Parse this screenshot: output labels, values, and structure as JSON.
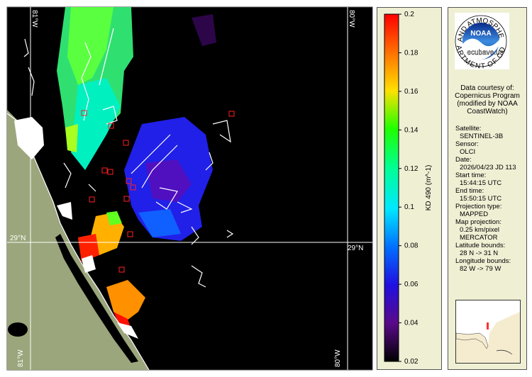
{
  "map": {
    "lat_left": "29°N",
    "lat_right": "29°N",
    "lon_top_left": "81°W",
    "lon_top_right": "80°W",
    "lon_bottom_left": "81°W",
    "lon_bottom_right": "80°W"
  },
  "colorbar": {
    "label": "KD 490 (m^-1)",
    "lim": [
      0.02,
      0.2
    ],
    "ticks": [
      0.2,
      0.18,
      0.16,
      0.14,
      0.12,
      0.1,
      0.08,
      0.06,
      0.04,
      0.02
    ]
  },
  "logo": {
    "name": "NOAA",
    "ring_top": "NATIONAL OCEANIC AND ATMOSPHERIC ADMINISTRATION",
    "ring_bottom": "U.S. DEPARTMENT OF COMMERCE",
    "watermark": "ecubave.us"
  },
  "credit": [
    "Data courtesy of:",
    "Copernicus Program",
    "(modified by NOAA",
    "CoastWatch)"
  ],
  "info": [
    {
      "label": "Satellite:",
      "values": [
        "SENTINEL-3B"
      ]
    },
    {
      "label": "Sensor:",
      "values": [
        "OLCI"
      ]
    },
    {
      "label": "Date:",
      "values": [
        "2026/04/23 JD 113"
      ]
    },
    {
      "label": "Start time:",
      "values": [
        "15:44:15 UTC"
      ]
    },
    {
      "label": "End time:",
      "values": [
        "15:50:15 UTC"
      ]
    },
    {
      "label": "Projection type:",
      "values": [
        "MAPPED"
      ]
    },
    {
      "label": "Map projection:",
      "values": [
        "0.25 km/pixel",
        "MERCATOR"
      ]
    },
    {
      "label": "Latitude bounds:",
      "values": [
        "28 N -> 31 N"
      ]
    },
    {
      "label": "Longitude bounds:",
      "values": [
        "82 W -> 79 W"
      ]
    }
  ]
}
